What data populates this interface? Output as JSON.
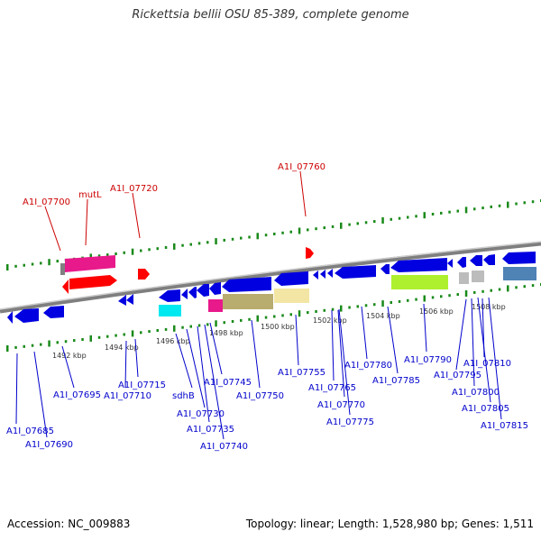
{
  "title": "Rickettsia bellii OSU 85-389, complete genome",
  "footer": {
    "accession": "Accession: NC_009883",
    "summary": "Topology: linear; Length: 1,528,980 bp; Genes: 1,511"
  },
  "colors": {
    "forward_gene": "#0000e0",
    "label_top": "#cc0000",
    "label_bottom": "#0000cc",
    "backbone": "#7f7f7f",
    "ticks": "#1a8a1a"
  },
  "axis_ticks": [
    "1492 kbp",
    "1494 kbp",
    "1496 kbp",
    "1498 kbp",
    "1500 kbp",
    "1502 kbp",
    "1504 kbp",
    "1506 kbp",
    "1508 kbp"
  ],
  "top_labels": [
    "A1I_07700",
    "mutL",
    "A1I_07720",
    "A1I_07760"
  ],
  "bottom_labels": [
    "A1I_07685",
    "A1I_07690",
    "A1I_07695",
    "A1I_07710",
    "A1I_07715",
    "sdhB",
    "A1I_07730",
    "A1I_07735",
    "A1I_07740",
    "A1I_07745",
    "A1I_07750",
    "A1I_07755",
    "A1I_07765",
    "A1I_07770",
    "A1I_07775",
    "A1I_07780",
    "A1I_07785",
    "A1I_07790",
    "A1I_07795",
    "A1I_07800",
    "A1I_07805",
    "A1I_07810",
    "A1I_07815"
  ]
}
